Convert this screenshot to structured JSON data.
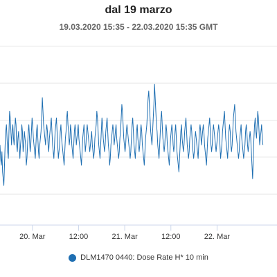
{
  "chart_data": {
    "type": "line",
    "title": "dal 19 marzo",
    "subtitle": "19.03.2020 15:35 - 22.03.2020 15:35 GMT",
    "xlabel": "",
    "ylabel": "",
    "x_tick_labels": [
      "20. Mar",
      "12:00",
      "21. Mar",
      "12:00",
      "22. Mar"
    ],
    "x_tick_hours": [
      8.42,
      20.42,
      32.42,
      44.42,
      56.42
    ],
    "xlim_hours": [
      0,
      72
    ],
    "y_gridline_count": 5,
    "grid": true,
    "legend_position": "bottom",
    "series": [
      {
        "name": "DLM1470 0440: Dose Rate H* 10 min",
        "color": "#1f6fb2",
        "interval_minutes": 10,
        "values": [
          0.45,
          0.35,
          0.3,
          0.4,
          0.25,
          0.2,
          0.15,
          0.3,
          0.45,
          0.55,
          0.6,
          0.5,
          0.4,
          0.35,
          0.55,
          0.7,
          0.65,
          0.55,
          0.45,
          0.55,
          0.6,
          0.5,
          0.45,
          0.55,
          0.65,
          0.6,
          0.45,
          0.4,
          0.5,
          0.55,
          0.45,
          0.35,
          0.45,
          0.5,
          0.6,
          0.55,
          0.4,
          0.45,
          0.55,
          0.5,
          0.45,
          0.3,
          0.35,
          0.45,
          0.55,
          0.6,
          0.5,
          0.4,
          0.45,
          0.55,
          0.65,
          0.6,
          0.5,
          0.45,
          0.4,
          0.35,
          0.45,
          0.55,
          0.6,
          0.5,
          0.4,
          0.35,
          0.45,
          0.5,
          0.55,
          0.65,
          0.8,
          0.7,
          0.6,
          0.55,
          0.5,
          0.45,
          0.55,
          0.6,
          0.55,
          0.45,
          0.4,
          0.5,
          0.55,
          0.6,
          0.65,
          0.55,
          0.45,
          0.4,
          0.35,
          0.45,
          0.55,
          0.6,
          0.65,
          0.55,
          0.45,
          0.35,
          0.4,
          0.45,
          0.55,
          0.6,
          0.5,
          0.45,
          0.4,
          0.35,
          0.3,
          0.4,
          0.5,
          0.55,
          0.65,
          0.7,
          0.6,
          0.55,
          0.45,
          0.5,
          0.6,
          0.55,
          0.45,
          0.4,
          0.35,
          0.45,
          0.55,
          0.6,
          0.55,
          0.45,
          0.5,
          0.55,
          0.6,
          0.5,
          0.45,
          0.4,
          0.35,
          0.3,
          0.4,
          0.5,
          0.55,
          0.6,
          0.5,
          0.4,
          0.45,
          0.55,
          0.6,
          0.55,
          0.5,
          0.45,
          0.4,
          0.45,
          0.5,
          0.55,
          0.45,
          0.4,
          0.35,
          0.4,
          0.5,
          0.55,
          0.6,
          0.7,
          0.65,
          0.55,
          0.45,
          0.4,
          0.35,
          0.45,
          0.55,
          0.65,
          0.6,
          0.5,
          0.45,
          0.4,
          0.45,
          0.55,
          0.6,
          0.65,
          0.55,
          0.45,
          0.4,
          0.3,
          0.35,
          0.45,
          0.5,
          0.55,
          0.6,
          0.55,
          0.45,
          0.5,
          0.55,
          0.6,
          0.5,
          0.45,
          0.4,
          0.35,
          0.4,
          0.5,
          0.55,
          0.65,
          0.75,
          0.7,
          0.6,
          0.5,
          0.45,
          0.4,
          0.45,
          0.55,
          0.6,
          0.55,
          0.5,
          0.45,
          0.4,
          0.35,
          0.4,
          0.5,
          0.6,
          0.65,
          0.55,
          0.45,
          0.4,
          0.35,
          0.45,
          0.55,
          0.6,
          0.5,
          0.45,
          0.4,
          0.45,
          0.55,
          0.6,
          0.55,
          0.45,
          0.4,
          0.35,
          0.3,
          0.4,
          0.5,
          0.55,
          0.6,
          0.7,
          0.8,
          0.85,
          0.75,
          0.65,
          0.55,
          0.5,
          0.45,
          0.55,
          0.65,
          0.75,
          0.9,
          0.8,
          0.7,
          0.6,
          0.55,
          0.45,
          0.4,
          0.35,
          0.45,
          0.55,
          0.65,
          0.7,
          0.6,
          0.5,
          0.45,
          0.4,
          0.45,
          0.55,
          0.6,
          0.55,
          0.45,
          0.4,
          0.35,
          0.3,
          0.4,
          0.5,
          0.55,
          0.6,
          0.55,
          0.45,
          0.4,
          0.45,
          0.55,
          0.6,
          0.5,
          0.4,
          0.35,
          0.3,
          0.25,
          0.35,
          0.45,
          0.55,
          0.6,
          0.5,
          0.45,
          0.4,
          0.45,
          0.55,
          0.6,
          0.65,
          0.55,
          0.45,
          0.4,
          0.35,
          0.4,
          0.5,
          0.55,
          0.6,
          0.55,
          0.45,
          0.4,
          0.35,
          0.4,
          0.5,
          0.55,
          0.5,
          0.45,
          0.4,
          0.35,
          0.45,
          0.55,
          0.6,
          0.55,
          0.45,
          0.5,
          0.55,
          0.6,
          0.55,
          0.45,
          0.4,
          0.35,
          0.3,
          0.4,
          0.5,
          0.55,
          0.6,
          0.65,
          0.55,
          0.45,
          0.4,
          0.45,
          0.55,
          0.6,
          0.55,
          0.5,
          0.45,
          0.4,
          0.45,
          0.5,
          0.55,
          0.6,
          0.55,
          0.45,
          0.35,
          0.4,
          0.45,
          0.55,
          0.6,
          0.65,
          0.7,
          0.6,
          0.5,
          0.45,
          0.4,
          0.35,
          0.45,
          0.55,
          0.6,
          0.55,
          0.45,
          0.4,
          0.45,
          0.55,
          0.65,
          0.7,
          0.75,
          0.65,
          0.55,
          0.5,
          0.45,
          0.4,
          0.35,
          0.4,
          0.5,
          0.55,
          0.6,
          0.5,
          0.45,
          0.4,
          0.35,
          0.4,
          0.45,
          0.55,
          0.6,
          0.55,
          0.45,
          0.4,
          0.45,
          0.5,
          0.55,
          0.5,
          0.4,
          0.3,
          0.2,
          0.35,
          0.5,
          0.6,
          0.65,
          0.55,
          0.5,
          0.6,
          0.7,
          0.65,
          0.55,
          0.45,
          0.5,
          0.55,
          0.6,
          0.5,
          0.45
        ]
      }
    ]
  },
  "colors": {
    "series_line": "#1f6fb2",
    "gridline": "#e6e6e6",
    "axis_line": "#ccd6eb",
    "title_text": "#222222",
    "subtitle_text": "#666666",
    "tick_text": "#333333"
  }
}
